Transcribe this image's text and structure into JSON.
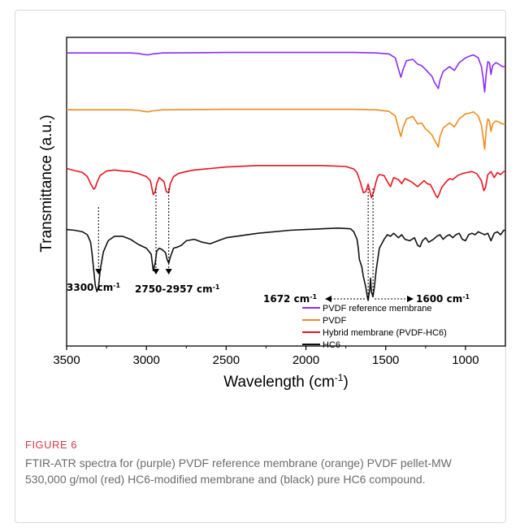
{
  "chart_data": {
    "type": "line",
    "xlabel": "Wavelength (cm",
    "xlabel_sup": "-1",
    "xlabel_close": ")",
    "ylabel": "Transmittance (a.u.)",
    "xlim": [
      3500,
      750
    ],
    "x_ticks": [
      3500,
      3000,
      2500,
      2000,
      1500,
      1000
    ],
    "x_tick_labels": [
      "3500",
      "3000",
      "2500",
      "2000",
      "1500",
      "1000"
    ],
    "series": [
      {
        "name": "PVDF reference membrane",
        "color": "#8b2cf5",
        "x": [
          3500,
          3100,
          3050,
          3020,
          2990,
          2960,
          2900,
          2500,
          2000,
          1700,
          1560,
          1480,
          1440,
          1420,
          1405,
          1390,
          1370,
          1330,
          1300,
          1275,
          1250,
          1230,
          1210,
          1195,
          1180,
          1170,
          1160,
          1140,
          1100,
          1070,
          1040,
          1000,
          970,
          950,
          920,
          900,
          890,
          880,
          870,
          860,
          850,
          840,
          830,
          810,
          790,
          770,
          750
        ],
        "y": [
          0.02,
          0.02,
          0.03,
          0.05,
          0.06,
          0.04,
          0.02,
          0.01,
          0.01,
          0.01,
          0.02,
          0.04,
          0.12,
          0.35,
          0.52,
          0.35,
          0.18,
          0.15,
          0.25,
          0.28,
          0.36,
          0.43,
          0.5,
          0.62,
          0.7,
          0.75,
          0.58,
          0.4,
          0.3,
          0.38,
          0.22,
          0.12,
          0.08,
          0.06,
          0.12,
          0.3,
          0.52,
          0.82,
          0.45,
          0.2,
          0.22,
          0.46,
          0.28,
          0.22,
          0.25,
          0.3,
          0.3
        ]
      },
      {
        "name": "PVDF",
        "color": "#f28a1f",
        "x": [
          3500,
          3100,
          3050,
          3020,
          2990,
          2960,
          2900,
          2500,
          2000,
          1700,
          1560,
          1480,
          1440,
          1420,
          1405,
          1390,
          1370,
          1330,
          1300,
          1275,
          1250,
          1230,
          1210,
          1195,
          1180,
          1170,
          1160,
          1140,
          1100,
          1070,
          1040,
          1000,
          970,
          950,
          920,
          900,
          890,
          880,
          870,
          860,
          850,
          840,
          830,
          810,
          790,
          770,
          750
        ],
        "y": [
          0.02,
          0.02,
          0.03,
          0.05,
          0.06,
          0.04,
          0.02,
          0.01,
          0.01,
          0.01,
          0.02,
          0.05,
          0.14,
          0.38,
          0.55,
          0.36,
          0.2,
          0.15,
          0.3,
          0.28,
          0.4,
          0.45,
          0.52,
          0.62,
          0.7,
          0.76,
          0.55,
          0.38,
          0.28,
          0.36,
          0.2,
          0.1,
          0.08,
          0.06,
          0.14,
          0.32,
          0.55,
          0.8,
          0.42,
          0.2,
          0.24,
          0.45,
          0.3,
          0.24,
          0.26,
          0.3,
          0.3
        ]
      },
      {
        "name": "Hybrid membrane (PVDF-HC6)",
        "color": "#e8141e",
        "x": [
          3500,
          3450,
          3400,
          3370,
          3350,
          3330,
          3320,
          3310,
          3290,
          3250,
          3200,
          3150,
          3100,
          3050,
          3000,
          2975,
          2957,
          2945,
          2935,
          2920,
          2890,
          2875,
          2860,
          2850,
          2830,
          2800,
          2750,
          2700,
          2600,
          2500,
          2300,
          2100,
          1900,
          1750,
          1700,
          1680,
          1660,
          1640,
          1625,
          1610,
          1600,
          1590,
          1575,
          1560,
          1550,
          1540,
          1510,
          1490,
          1470,
          1450,
          1420,
          1400,
          1380,
          1340,
          1300,
          1260,
          1240,
          1220,
          1200,
          1185,
          1175,
          1165,
          1150,
          1120,
          1100,
          1080,
          1050,
          1020,
          990,
          960,
          930,
          900,
          885,
          875,
          860,
          840,
          820,
          800,
          780,
          760,
          750
        ],
        "y": [
          0.04,
          0.08,
          0.12,
          0.2,
          0.34,
          0.45,
          0.42,
          0.32,
          0.18,
          0.09,
          0.07,
          0.09,
          0.1,
          0.14,
          0.2,
          0.28,
          0.56,
          0.5,
          0.34,
          0.22,
          0.3,
          0.5,
          0.52,
          0.34,
          0.2,
          0.14,
          0.1,
          0.07,
          0.04,
          0.01,
          -0.02,
          -0.02,
          -0.02,
          0.0,
          0.05,
          0.12,
          0.3,
          0.52,
          0.5,
          0.35,
          0.48,
          0.62,
          0.5,
          0.3,
          0.2,
          0.16,
          0.18,
          0.3,
          0.4,
          0.22,
          0.26,
          0.34,
          0.24,
          0.3,
          0.4,
          0.28,
          0.34,
          0.36,
          0.48,
          0.58,
          0.62,
          0.55,
          0.42,
          0.3,
          0.24,
          0.26,
          0.18,
          0.14,
          0.12,
          0.1,
          0.14,
          0.28,
          0.48,
          0.42,
          0.16,
          0.1,
          0.22,
          0.12,
          0.16,
          0.1,
          0.1
        ]
      },
      {
        "name": "HC6",
        "color": "#111111",
        "x": [
          3500,
          3450,
          3400,
          3370,
          3350,
          3340,
          3330,
          3320,
          3310,
          3300,
          3290,
          3270,
          3240,
          3200,
          3150,
          3100,
          3050,
          3000,
          2970,
          2957,
          2945,
          2935,
          2920,
          2900,
          2880,
          2870,
          2860,
          2850,
          2830,
          2800,
          2780,
          2750,
          2700,
          2650,
          2600,
          2550,
          2500,
          2300,
          2100,
          1900,
          1800,
          1720,
          1700,
          1680,
          1672,
          1665,
          1650,
          1640,
          1625,
          1615,
          1610,
          1605,
          1600,
          1595,
          1590,
          1580,
          1570,
          1560,
          1540,
          1510,
          1490,
          1470,
          1450,
          1420,
          1400,
          1380,
          1350,
          1320,
          1300,
          1285,
          1270,
          1250,
          1230,
          1200,
          1180,
          1160,
          1140,
          1120,
          1100,
          1080,
          1060,
          1040,
          1020,
          1000,
          980,
          960,
          940,
          920,
          900,
          880,
          860,
          840,
          820,
          800,
          780,
          760,
          750
        ],
        "y": [
          0.05,
          0.06,
          0.08,
          0.12,
          0.22,
          0.38,
          0.6,
          0.8,
          0.88,
          0.82,
          0.6,
          0.35,
          0.2,
          0.14,
          0.14,
          0.18,
          0.25,
          0.3,
          0.38,
          0.6,
          0.5,
          0.34,
          0.3,
          0.32,
          0.36,
          0.45,
          0.5,
          0.42,
          0.3,
          0.28,
          0.26,
          0.2,
          0.18,
          0.22,
          0.24,
          0.2,
          0.16,
          0.1,
          0.06,
          0.04,
          0.03,
          0.04,
          0.08,
          0.18,
          0.3,
          0.45,
          0.55,
          0.68,
          0.82,
          0.95,
          1.0,
          0.92,
          0.85,
          0.7,
          0.88,
          0.95,
          0.8,
          0.6,
          0.3,
          0.18,
          0.12,
          0.14,
          0.1,
          0.16,
          0.12,
          0.18,
          0.2,
          0.16,
          0.26,
          0.28,
          0.2,
          0.16,
          0.22,
          0.18,
          0.14,
          0.12,
          0.18,
          0.14,
          0.12,
          0.16,
          0.12,
          0.1,
          0.18,
          0.2,
          0.12,
          0.1,
          0.12,
          0.08,
          0.1,
          0.12,
          0.1,
          0.2,
          0.1,
          0.08,
          0.12,
          0.06,
          0.06
        ]
      }
    ],
    "annotations": [
      {
        "text": "3300 cm",
        "sup": "-1",
        "x": 3300
      },
      {
        "text": "2750-2957 cm",
        "sup": "-1",
        "x": 2900
      },
      {
        "text": "1672 cm",
        "sup": "-1",
        "x": 1672
      },
      {
        "text": "1600 cm",
        "sup": "-1",
        "x": 1600
      }
    ],
    "legend": [
      "PVDF reference membrane",
      "PVDF",
      "Hybrid membrane (PVDF-HC6)",
      "HC6"
    ],
    "legend_position": "bottom-right",
    "grid": false
  },
  "figure": {
    "label": "FIGURE 6",
    "caption": "FTIR-ATR spectra for (purple) PVDF reference membrane (orange) PVDF pellet-MW 530,000 g/mol (red) HC6-modified membrane and (black) pure HC6 compound."
  }
}
